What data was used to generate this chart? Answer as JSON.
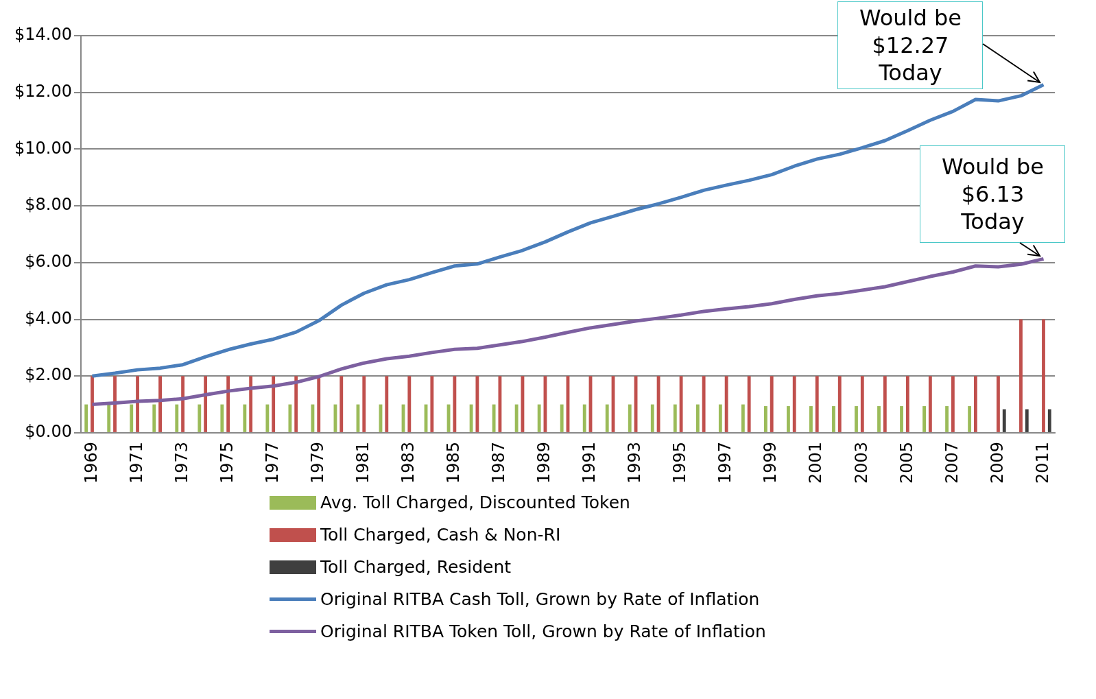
{
  "chart_data": {
    "type": "bar",
    "categories": [
      "1969",
      null,
      "1971",
      null,
      "1973",
      null,
      "1975",
      null,
      "1977",
      null,
      "1979",
      null,
      "1981",
      null,
      "1983",
      null,
      "1985",
      null,
      "1987",
      null,
      "1989",
      null,
      "1991",
      null,
      "1993",
      null,
      "1995",
      null,
      "1997",
      null,
      "1999",
      null,
      "2001",
      null,
      "2003",
      null,
      "2005",
      null,
      "2007",
      null,
      "2009",
      null,
      "2011"
    ],
    "series": [
      {
        "name": "Avg. Toll Charged, Discounted Token",
        "color": "#9bbb59",
        "values": [
          1,
          1,
          1,
          1,
          1,
          1,
          1,
          1,
          1,
          1,
          1,
          1,
          1,
          1,
          1,
          1,
          1,
          1,
          1,
          1,
          1,
          1,
          1,
          1,
          1,
          1,
          1,
          1,
          1,
          1,
          0.94,
          0.94,
          0.94,
          0.94,
          0.94,
          0.94,
          0.94,
          0.94,
          0.94,
          0.94,
          null,
          null,
          null
        ]
      },
      {
        "name": "Toll Charged, Cash & Non-RI",
        "color": "#c0504d",
        "values": [
          2,
          2,
          2,
          2,
          2,
          2,
          2,
          2,
          2,
          2,
          2,
          2,
          2,
          2,
          2,
          2,
          2,
          2,
          2,
          2,
          2,
          2,
          2,
          2,
          2,
          2,
          2,
          2,
          2,
          2,
          2,
          2,
          2,
          2,
          2,
          2,
          2,
          2,
          2,
          2,
          2,
          4,
          4
        ]
      },
      {
        "name": "Toll Charged, Resident",
        "color": "#3f3f3f",
        "values": [
          null,
          null,
          null,
          null,
          null,
          null,
          null,
          null,
          null,
          null,
          null,
          null,
          null,
          null,
          null,
          null,
          null,
          null,
          null,
          null,
          null,
          null,
          null,
          null,
          null,
          null,
          null,
          null,
          null,
          null,
          null,
          null,
          null,
          null,
          null,
          null,
          null,
          null,
          null,
          null,
          0.83,
          0.83,
          0.83
        ]
      },
      {
        "name": "Original RITBA Cash Toll, Grown by Rate of Inflation",
        "type": "line",
        "color": "#4a7ebb",
        "values": [
          2.0,
          2.1,
          2.22,
          2.28,
          2.4,
          2.68,
          2.93,
          3.13,
          3.3,
          3.55,
          3.95,
          4.5,
          4.92,
          5.22,
          5.4,
          5.65,
          5.88,
          5.95,
          6.2,
          6.43,
          6.73,
          7.08,
          7.4,
          7.63,
          7.87,
          8.07,
          8.3,
          8.55,
          8.73,
          8.9,
          9.1,
          9.4,
          9.65,
          9.82,
          10.05,
          10.3,
          10.65,
          11.02,
          11.33,
          11.75,
          11.7,
          11.88,
          12.27
        ]
      },
      {
        "name": "Original RITBA Token Toll, Grown by Rate of Inflation",
        "type": "line",
        "color": "#7d60a0",
        "values": [
          1.0,
          1.05,
          1.11,
          1.14,
          1.2,
          1.34,
          1.47,
          1.57,
          1.65,
          1.78,
          1.98,
          2.25,
          2.46,
          2.61,
          2.7,
          2.83,
          2.94,
          2.98,
          3.1,
          3.22,
          3.37,
          3.54,
          3.7,
          3.82,
          3.94,
          4.04,
          4.15,
          4.28,
          4.37,
          4.45,
          4.55,
          4.7,
          4.83,
          4.91,
          5.03,
          5.15,
          5.33,
          5.51,
          5.67,
          5.88,
          5.85,
          5.94,
          6.13
        ]
      }
    ],
    "ylim": [
      0,
      14
    ],
    "yticks": [
      {
        "value": 0,
        "label": "$0.00"
      },
      {
        "value": 2,
        "label": "$2.00"
      },
      {
        "value": 4,
        "label": "$4.00"
      },
      {
        "value": 6,
        "label": "$6.00"
      },
      {
        "value": 8,
        "label": "$8.00"
      },
      {
        "value": 10,
        "label": "$10.00"
      },
      {
        "value": 12,
        "label": "$12.00"
      },
      {
        "value": 14,
        "label": "$14.00"
      }
    ],
    "grid": "y",
    "legend": "bottom",
    "marker": "none",
    "line_style": "solid",
    "annotations": [
      {
        "text": "Would be\n$12.27\nToday",
        "x": "2011",
        "y": 12.27
      },
      {
        "text": "Would be\n$6.13\nToday",
        "x": "2011",
        "y": 6.13
      }
    ]
  }
}
